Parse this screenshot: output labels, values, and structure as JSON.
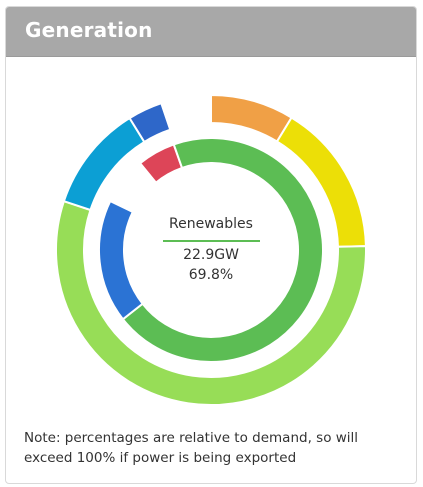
{
  "panel": {
    "title": "Generation"
  },
  "center": {
    "label": "Renewables",
    "value": "22.9GW",
    "percent": "69.8%"
  },
  "note": "Note: percentages are relative to demand, so will exceed 100% if power is being exported",
  "chart_data": {
    "type": "pie",
    "rings": [
      {
        "ring": "outer",
        "segments": [
          {
            "color": "#f0a046",
            "fraction": 0.087
          },
          {
            "color": "#ecdf07",
            "fraction": 0.159
          },
          {
            "color": "#97dd57",
            "fraction": 0.555
          },
          {
            "color": "#0c9fd4",
            "fraction": 0.111
          },
          {
            "color": "#2e67c9",
            "fraction": 0.036
          }
        ]
      },
      {
        "ring": "inner",
        "segments": [
          {
            "color": "#dd4558",
            "fraction": 0.055
          },
          {
            "color": "#5cbd54",
            "fraction": 0.698
          },
          {
            "color": "#2b73d4",
            "fraction": 0.178
          }
        ]
      }
    ]
  }
}
